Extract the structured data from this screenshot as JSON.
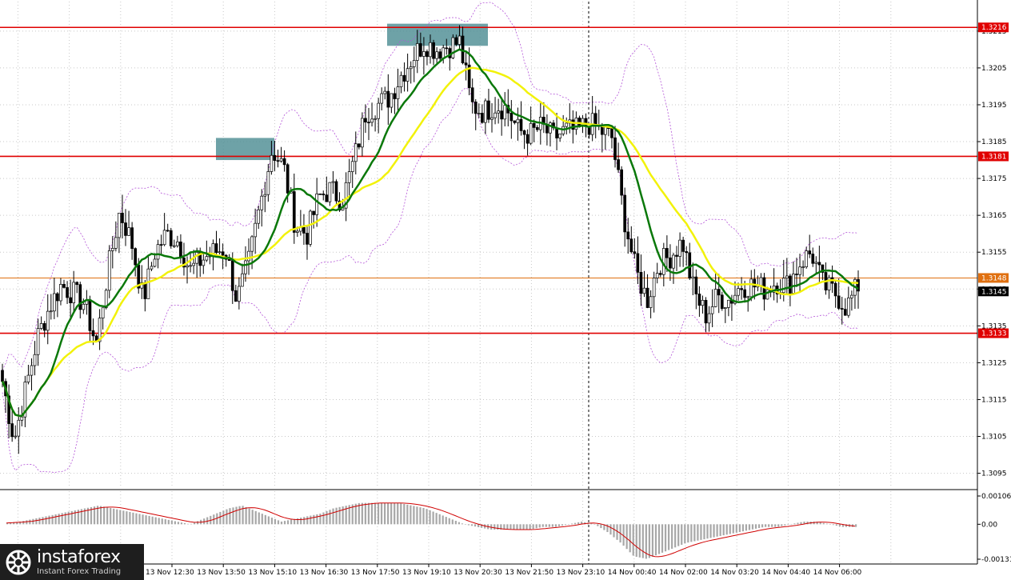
{
  "chart_data": [
    {
      "type": "candlestick",
      "price_axis": {
        "ticks": [
          "1.3215",
          "1.3205",
          "1.3195",
          "1.3185",
          "1.3175",
          "1.3165",
          "1.3155",
          "1.3145",
          "1.3135",
          "1.3125",
          "1.3115",
          "1.3105",
          "1.3095"
        ],
        "range": [
          1.3091,
          1.3223
        ]
      },
      "time_axis": {
        "labels": [
          "13 Nov 12:30",
          "13 Nov 13:50",
          "13 Nov 15:10",
          "13 Nov 16:30",
          "13 Nov 17:50",
          "13 Nov 19:10",
          "13 Nov 20:30",
          "13 Nov 21:50",
          "13 Nov 23:10",
          "14 Nov 00:40",
          "14 Nov 02:00",
          "14 Nov 03:20",
          "14 Nov 04:40",
          "14 Nov 06:00"
        ]
      },
      "levels": [
        {
          "price": 1.3216,
          "label": "1.3216",
          "color": "#e00000"
        },
        {
          "price": 1.3181,
          "label": "1.3181",
          "color": "#e00000"
        },
        {
          "price": 1.3133,
          "label": "1.3133",
          "color": "#e00000"
        },
        {
          "price": 1.3148,
          "label": "1.3148",
          "color": "#e07010"
        }
      ],
      "current_price": {
        "price": 1.3145,
        "label": "1.3145"
      },
      "price_path": [
        1.312,
        1.3104,
        1.3118,
        1.3132,
        1.314,
        1.3146,
        1.3144,
        1.3141,
        1.313,
        1.315,
        1.3166,
        1.3158,
        1.3142,
        1.3155,
        1.316,
        1.3158,
        1.315,
        1.3153,
        1.3155,
        1.3156,
        1.3142,
        1.3152,
        1.3168,
        1.3183,
        1.3178,
        1.3162,
        1.316,
        1.317,
        1.3172,
        1.3169,
        1.318,
        1.3193,
        1.3195,
        1.3197,
        1.3203,
        1.3208,
        1.3212,
        1.321,
        1.3211,
        1.3212,
        1.3195,
        1.3193,
        1.3195,
        1.3194,
        1.3188,
        1.3187,
        1.3189,
        1.3186,
        1.3188,
        1.3188,
        1.319,
        1.3188,
        1.3186,
        1.3165,
        1.315,
        1.3142,
        1.3152,
        1.3154,
        1.3158,
        1.3144,
        1.3138,
        1.3143,
        1.3142,
        1.3146,
        1.3146,
        1.3145,
        1.3147,
        1.3146,
        1.3152,
        1.3155,
        1.3146,
        1.3144,
        1.314,
        1.3146
      ],
      "highlight_zones": [
        {
          "from_price": 1.318,
          "to_price": 1.3186
        },
        {
          "from_price": 1.3211,
          "to_price": 1.3217
        }
      ],
      "indicators": [
        "moving average (green)",
        "moving average (yellow)",
        "envelope bands (violet, dashed)"
      ]
    },
    {
      "type": "bar",
      "y_axis": {
        "ticks": [
          "0.00106",
          "0.00",
          "-0.00131"
        ],
        "range": [
          -0.00131,
          0.00106
        ]
      },
      "values": [
        5e-05,
        0.0001,
        0.0002,
        0.0003,
        0.0004,
        0.0005,
        0.0006,
        0.0007,
        0.0006,
        0.0005,
        0.0004,
        0.0003,
        0.0002,
        0.0001,
        0.0,
        0.0002,
        0.0004,
        0.0006,
        0.0007,
        0.0005,
        0.0003,
        0.0001,
        0.0002,
        0.0003,
        0.0004,
        0.0006,
        0.0007,
        0.0008,
        0.0008,
        0.0008,
        0.0008,
        0.0007,
        0.0006,
        0.0004,
        0.0002,
        0.0,
        -0.0001,
        -0.0002,
        -0.0002,
        -0.0002,
        -0.0002,
        -0.0001,
        -0.0001,
        -0.0,
        0.0001,
        0.0,
        -0.0003,
        -0.0007,
        -0.0012,
        -0.0013,
        -0.0011,
        -0.0009,
        -0.0007,
        -0.0006,
        -0.0005,
        -0.0004,
        -0.0003,
        -0.0002,
        -0.0001,
        -0.0001,
        0.0,
        0.0001,
        0.0001,
        0.0,
        -0.0001,
        -0.0001
      ]
    }
  ],
  "branding": {
    "name": "instaforex",
    "tagline": "Instant Forex Trading"
  }
}
